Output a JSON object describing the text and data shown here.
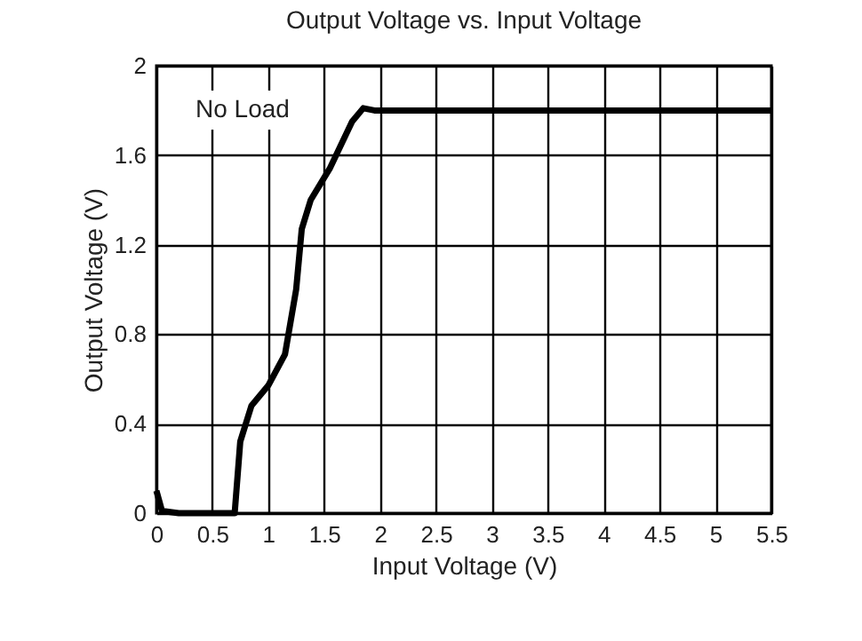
{
  "chart_data": {
    "type": "line",
    "title": "Output Voltage vs. Input Voltage",
    "xlabel": "Input Voltage (V)",
    "ylabel": "Output Voltage (V)",
    "series": [
      {
        "color": "#000000",
        "x": [
          0,
          0.05,
          0.2,
          0.5,
          0.7,
          0.75,
          0.85,
          1.0,
          1.15,
          1.25,
          1.3,
          1.38,
          1.55,
          1.75,
          1.85,
          1.95,
          3.0,
          4.0,
          5.5
        ],
        "values": [
          0.1,
          0.01,
          0,
          0,
          0,
          0.32,
          0.48,
          0.57,
          0.71,
          1.0,
          1.27,
          1.4,
          1.54,
          1.75,
          1.81,
          1.8,
          1.8,
          1.8,
          1.8
        ]
      }
    ],
    "xlim": [
      0,
      5.5
    ],
    "xticks": [
      0,
      0.5,
      1,
      1.5,
      2,
      2.5,
      3,
      3.5,
      4,
      4.5,
      5,
      5.5
    ],
    "ylim": [
      0,
      2
    ],
    "yticks": [
      0,
      0.4,
      0.8,
      1.2,
      1.6,
      2
    ],
    "annotations": [
      "No Load"
    ],
    "grid": true,
    "marker": "none",
    "line_style": "solid"
  }
}
